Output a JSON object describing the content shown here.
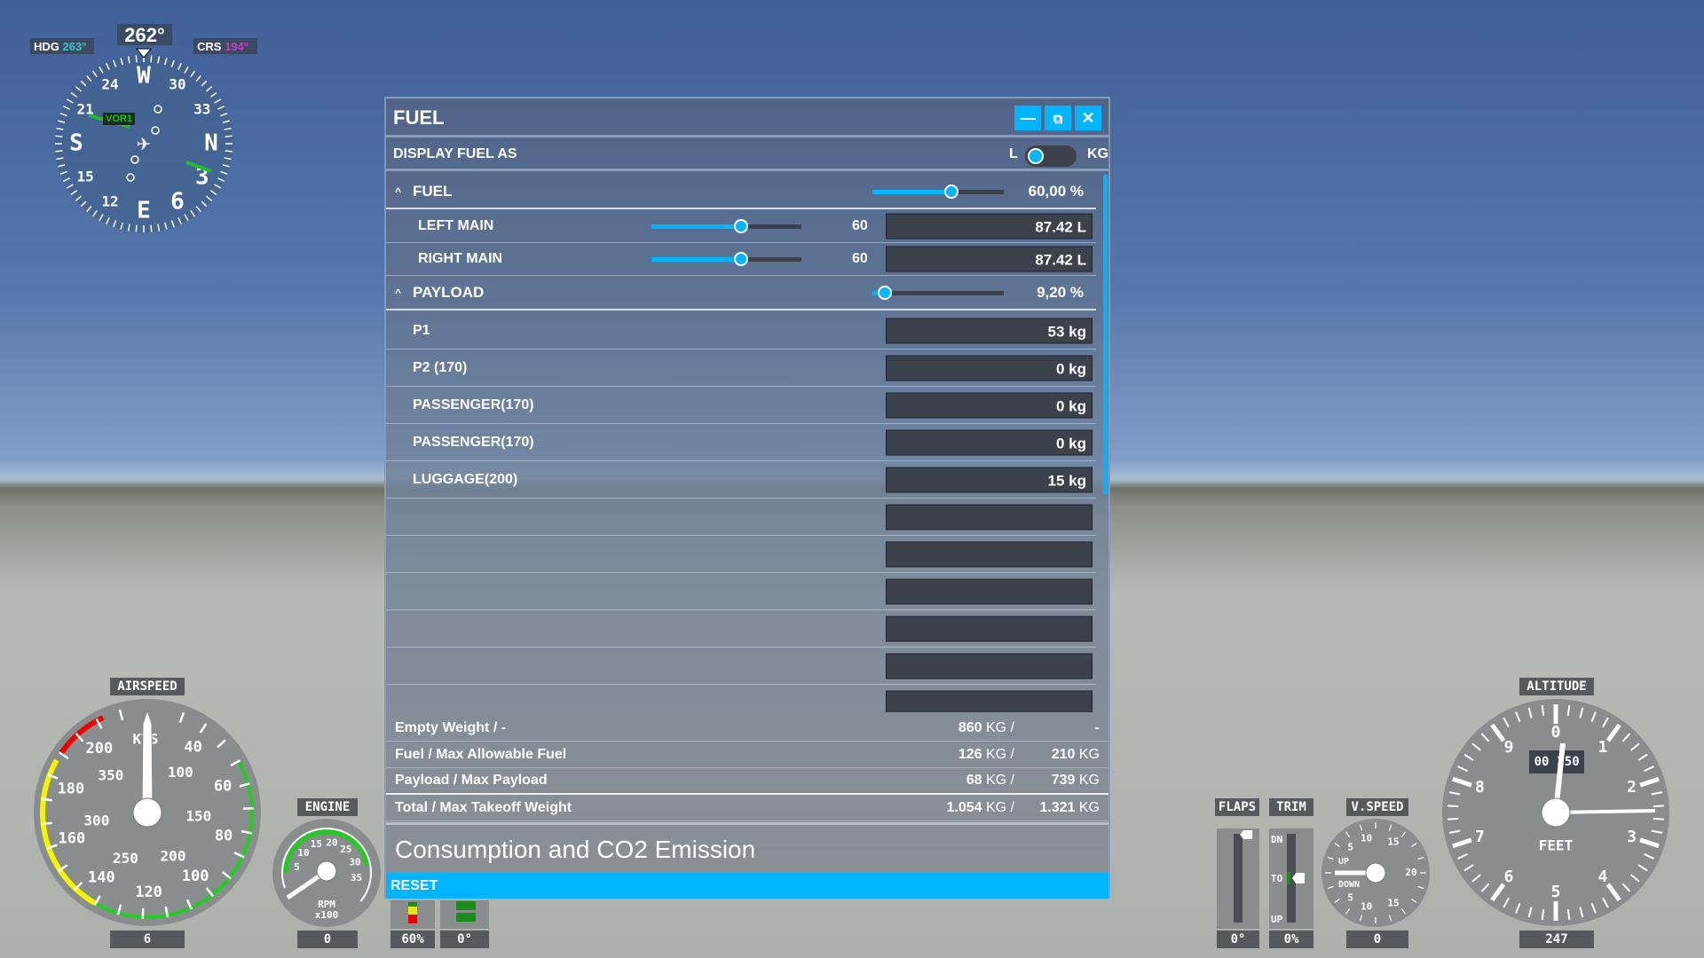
{
  "compass": {
    "heading_value": "262°",
    "hdg_label": "HDG",
    "hdg_value": "263°",
    "crs_label": "CRS",
    "crs_value": "194°",
    "nav_source": "VOR1",
    "cardinals": [
      "W",
      "30",
      "33",
      "N",
      "3",
      "6",
      "E",
      "12",
      "15",
      "S",
      "21",
      "24"
    ],
    "colors": {
      "hdg": "#3fc0c8",
      "crs": "#c040c0",
      "needle": "#1fbf2a"
    }
  },
  "panel": {
    "title": "FUEL",
    "minimize_icon": "minimize-icon",
    "popout_icon": "external-window-icon",
    "close_icon": "close-icon",
    "display_label": "DISPLAY FUEL AS",
    "unit_left": "L",
    "unit_right": "KG",
    "unit_selected": "L",
    "fuel": {
      "label": "FUEL",
      "percent": "60,00 %",
      "fraction": 0.6,
      "tanks": [
        {
          "name": "LEFT MAIN",
          "value": "60",
          "amount": "87.42 L",
          "fraction": 0.6
        },
        {
          "name": "RIGHT MAIN",
          "value": "60",
          "amount": "87.42 L",
          "fraction": 0.6
        }
      ]
    },
    "payload": {
      "label": "PAYLOAD",
      "percent": "9,20 %",
      "fraction": 0.092,
      "stations": [
        {
          "name": "P1",
          "amount": "53 kg"
        },
        {
          "name": "P2 (170)",
          "amount": "0 kg"
        },
        {
          "name": "PASSENGER(170)",
          "amount": "0 kg"
        },
        {
          "name": "PASSENGER(170)",
          "amount": "0 kg"
        },
        {
          "name": "LUGGAGE(200)",
          "amount": "15 kg"
        },
        {
          "name": "",
          "amount": ""
        },
        {
          "name": "",
          "amount": ""
        },
        {
          "name": "",
          "amount": ""
        },
        {
          "name": "",
          "amount": ""
        },
        {
          "name": "",
          "amount": ""
        },
        {
          "name": "",
          "amount": ""
        }
      ]
    },
    "summary": [
      {
        "label": "Empty Weight / -",
        "value": "860",
        "unit": "KG /",
        "max": "-",
        "max_unit": ""
      },
      {
        "label": "Fuel / Max Allowable Fuel",
        "value": "126",
        "unit": "KG /",
        "max": "210",
        "max_unit": "KG"
      },
      {
        "label": "Payload / Max Payload",
        "value": "68",
        "unit": "KG /",
        "max": "739",
        "max_unit": "KG"
      },
      {
        "label": "Total / Max Takeoff Weight",
        "value": "1.054",
        "unit": "KG /",
        "max": "1.321",
        "max_unit": "KG"
      }
    ],
    "consumption_title": "Consumption and CO2 Emission",
    "reset_label": "RESET",
    "accent": "#00b4ff"
  },
  "instruments": {
    "airspeed": {
      "label": "AIRSPEED",
      "unit": "KTS",
      "readout": "6",
      "outer": [
        "40",
        "60",
        "80",
        "100",
        "120",
        "140",
        "160",
        "180",
        "200"
      ],
      "inner": [
        "100",
        "150",
        "200",
        "250",
        "300",
        "350"
      ]
    },
    "engine": {
      "label": "ENGINE",
      "unit": "RPM",
      "unit2": "x100",
      "readout": "0",
      "ticks": [
        "5",
        "10",
        "15",
        "20",
        "25",
        "30",
        "35"
      ]
    },
    "fuel_ind": {
      "readout": "60%"
    },
    "flaps_ind": {
      "readout": "0°"
    },
    "flaps": {
      "label": "FLAPS",
      "readout": "0°"
    },
    "trim": {
      "label": "TRIM",
      "readout": "0%",
      "dn": "DN",
      "to": "TO",
      "up": "UP"
    },
    "vspeed": {
      "label": "V.SPEED",
      "readout": "0",
      "up": "UP",
      "down": "DOWN",
      "ticks": [
        "5",
        "10",
        "15",
        "20",
        "15",
        "10",
        "5"
      ]
    },
    "altitude": {
      "label": "ALTITUDE",
      "unit": "FEET",
      "readout": "247",
      "drum": "00",
      "drum_value": "250",
      "digits": [
        "0",
        "1",
        "2",
        "3",
        "4",
        "5",
        "6",
        "7",
        "8",
        "9"
      ]
    }
  }
}
